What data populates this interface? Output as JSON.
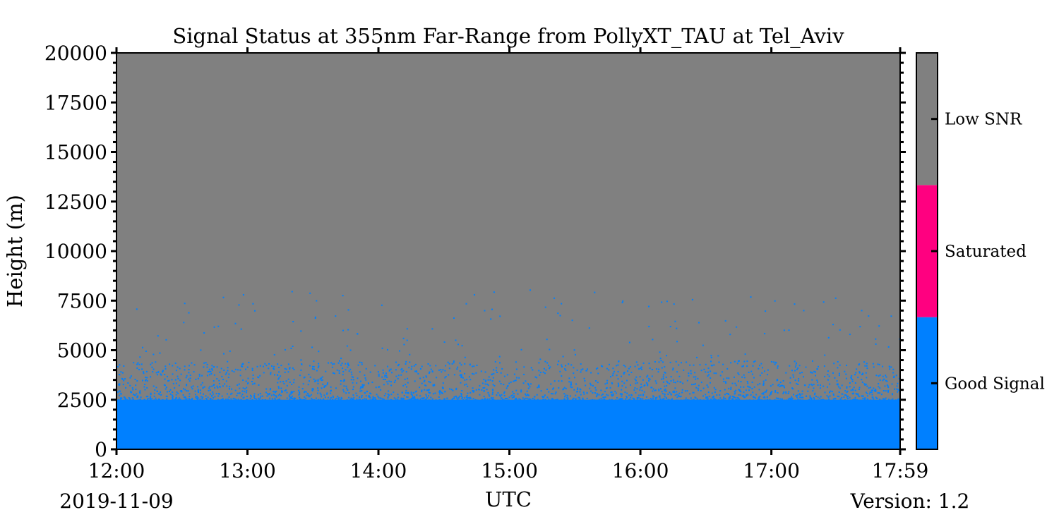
{
  "chart_data": {
    "type": "heatmap",
    "title": "Signal Status at 355nm Far-Range from PollyXT_TAU at Tel_Aviv",
    "xlabel": "UTC",
    "ylabel": "Height (m)",
    "date_label": "2019-11-09",
    "version_label": "Version: 1.2",
    "x_range": [
      "12:00",
      "17:59"
    ],
    "x_ticks": [
      {
        "label": "12:00",
        "hour": 12.0
      },
      {
        "label": "13:00",
        "hour": 13.0
      },
      {
        "label": "14:00",
        "hour": 14.0
      },
      {
        "label": "15:00",
        "hour": 15.0
      },
      {
        "label": "16:00",
        "hour": 16.0
      },
      {
        "label": "17:00",
        "hour": 17.0
      },
      {
        "label": "17:59",
        "hour": 17.9833
      }
    ],
    "y_range": [
      0,
      20000
    ],
    "y_ticks": [
      0,
      2500,
      5000,
      7500,
      10000,
      12500,
      15000,
      17500,
      20000
    ],
    "y_minor_step": 500,
    "categories": [
      {
        "label": "Good Signal",
        "color": "#0080ff"
      },
      {
        "label": "Saturated",
        "color": "#ff0080"
      },
      {
        "label": "Low SNR",
        "color": "#808080"
      }
    ],
    "field_summary": {
      "good_signal_up_to_m": 2500,
      "mixed_transition_up_to_m": 4500,
      "low_snr_above_m": 4500
    }
  }
}
